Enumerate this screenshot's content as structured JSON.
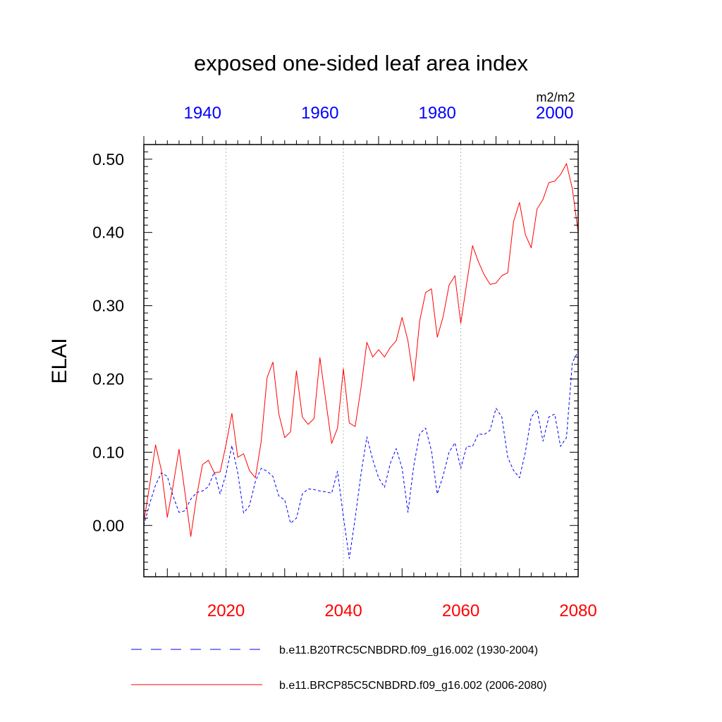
{
  "chart_data": {
    "type": "line",
    "title": "exposed one-sided leaf area index",
    "ylabel": "ELAI",
    "units": "m2/m2",
    "ylim": [
      -0.07,
      0.52
    ],
    "yticks": [
      "0.00",
      "0.10",
      "0.20",
      "0.30",
      "0.40",
      "0.50"
    ],
    "grid": "vertical dotted lines at bottom-axis major ticks",
    "legend_position": "bottom",
    "axes": {
      "bottom": {
        "range": [
          2006,
          2080
        ],
        "ticks": [
          2020,
          2040,
          2060,
          2080
        ],
        "color": "#ff0000"
      },
      "top": {
        "range": [
          1930,
          2004
        ],
        "ticks": [
          1940,
          1960,
          1980,
          2000
        ],
        "color": "#0000ff"
      }
    },
    "series": [
      {
        "name": "b.e11.B20TRC5CNBDRD.f09_g16.002 (1930-2004)",
        "color": "#0000ff",
        "dash": "dashed",
        "axis": "top",
        "x_start": 1930,
        "values": [
          0.0,
          0.03,
          0.055,
          0.072,
          0.067,
          0.04,
          0.018,
          0.02,
          0.036,
          0.045,
          0.047,
          0.053,
          0.073,
          0.043,
          0.07,
          0.109,
          0.072,
          0.017,
          0.027,
          0.06,
          0.078,
          0.074,
          0.067,
          0.04,
          0.035,
          0.003,
          0.01,
          0.043,
          0.05,
          0.049,
          0.047,
          0.046,
          0.044,
          0.074,
          0.012,
          -0.045,
          0.01,
          0.07,
          0.121,
          0.09,
          0.065,
          0.052,
          0.085,
          0.105,
          0.078,
          0.018,
          0.082,
          0.125,
          0.133,
          0.102,
          0.043,
          0.068,
          0.1,
          0.113,
          0.078,
          0.108,
          0.108,
          0.125,
          0.124,
          0.13,
          0.16,
          0.148,
          0.093,
          0.075,
          0.065,
          0.1,
          0.148,
          0.158,
          0.115,
          0.148,
          0.152,
          0.108,
          0.12,
          0.222,
          0.238
        ]
      },
      {
        "name": "b.e11.BRCP85C5CNBDRD.f09_g16.002 (2006-2080)",
        "color": "#ff0000",
        "dash": "solid",
        "axis": "bottom",
        "x_start": 2006,
        "values": [
          0.005,
          0.055,
          0.11,
          0.075,
          0.011,
          0.055,
          0.104,
          0.045,
          -0.015,
          0.04,
          0.083,
          0.089,
          0.072,
          0.073,
          0.11,
          0.153,
          0.093,
          0.098,
          0.075,
          0.065,
          0.115,
          0.202,
          0.223,
          0.152,
          0.12,
          0.128,
          0.211,
          0.148,
          0.138,
          0.146,
          0.229,
          0.17,
          0.112,
          0.133,
          0.214,
          0.14,
          0.135,
          0.188,
          0.25,
          0.23,
          0.24,
          0.23,
          0.243,
          0.252,
          0.284,
          0.252,
          0.197,
          0.279,
          0.318,
          0.323,
          0.257,
          0.285,
          0.328,
          0.341,
          0.276,
          0.33,
          0.382,
          0.36,
          0.342,
          0.329,
          0.331,
          0.341,
          0.345,
          0.415,
          0.441,
          0.397,
          0.379,
          0.432,
          0.445,
          0.468,
          0.47,
          0.479,
          0.494,
          0.46,
          0.4
        ]
      }
    ]
  }
}
